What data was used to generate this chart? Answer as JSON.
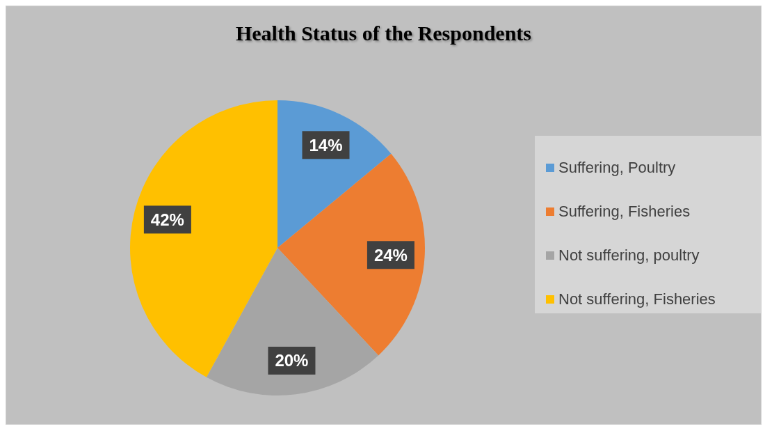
{
  "chart_data": {
    "type": "pie",
    "title": "Health Status of the Respondents",
    "categories": [
      "Suffering, Poultry",
      "Suffering, Fisheries",
      "Not suffering, poultry",
      "Not suffering, Fisheries"
    ],
    "values": [
      14,
      24,
      20,
      42
    ],
    "colors": [
      "#5b9bd5",
      "#ed7d31",
      "#a5a5a5",
      "#ffc000"
    ],
    "value_labels": [
      "14%",
      "24%",
      "20%",
      "42%"
    ],
    "legend": "right"
  }
}
